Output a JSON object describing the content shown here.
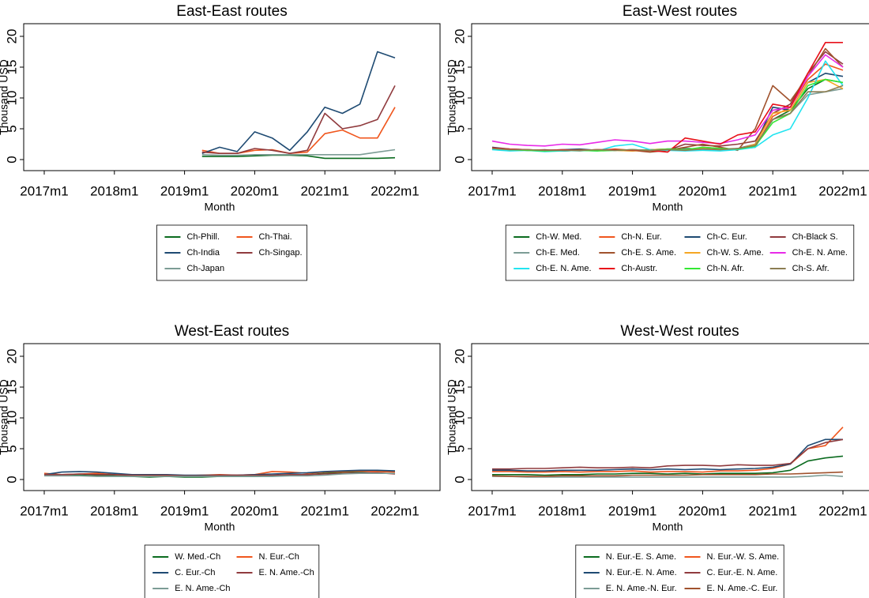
{
  "chart_data": [
    {
      "type": "line",
      "title": "East-East routes",
      "x_label": "Month",
      "y_label": "Thousand USD",
      "x": [
        2017,
        2017.25,
        2017.5,
        2017.75,
        2018,
        2018.25,
        2018.5,
        2018.75,
        2019,
        2019.25,
        2019.5,
        2019.75,
        2020,
        2020.25,
        2020.5,
        2020.75,
        2021,
        2021.25,
        2021.5,
        2021.75,
        2022
      ],
      "xlim": [
        2017,
        2022
      ],
      "xticks": [
        {
          "value": 2017,
          "label": "2017m1"
        },
        {
          "value": 2018,
          "label": "2018m1"
        },
        {
          "value": 2019,
          "label": "2019m1"
        },
        {
          "value": 2020,
          "label": "2020m1"
        },
        {
          "value": 2021,
          "label": "2021m1"
        },
        {
          "value": 2022,
          "label": "2022m1"
        }
      ],
      "ylim": [
        0,
        20
      ],
      "yticks": [
        0,
        5,
        10,
        15,
        20
      ],
      "series": [
        {
          "name": "Ch-Phill.",
          "color": "#0b6b1f",
          "values": [
            null,
            null,
            null,
            null,
            null,
            null,
            null,
            null,
            null,
            0.5,
            0.5,
            0.5,
            0.6,
            0.7,
            0.7,
            0.6,
            0.2,
            0.2,
            0.2,
            0.2,
            0.3
          ]
        },
        {
          "name": "Ch-Thai.",
          "color": "#f0561d",
          "values": [
            null,
            null,
            null,
            null,
            null,
            null,
            null,
            null,
            null,
            1.5,
            1.0,
            1.0,
            1.5,
            1.6,
            1.0,
            1.2,
            4.2,
            4.8,
            3.5,
            3.5,
            8.5
          ]
        },
        {
          "name": "Ch-India",
          "color": "#1e4a72",
          "values": [
            null,
            null,
            null,
            null,
            null,
            null,
            null,
            null,
            null,
            1.0,
            2.0,
            1.3,
            4.5,
            3.5,
            1.5,
            4.5,
            8.5,
            7.5,
            9.0,
            17.5,
            16.5
          ]
        },
        {
          "name": "Ch-Singap.",
          "color": "#903b3e",
          "values": [
            null,
            null,
            null,
            null,
            null,
            null,
            null,
            null,
            null,
            1.2,
            1.0,
            1.0,
            1.8,
            1.5,
            1.0,
            1.5,
            7.5,
            5.0,
            5.5,
            6.5,
            12.0
          ]
        },
        {
          "name": "Ch-Japan",
          "color": "#7c9c95",
          "values": [
            null,
            null,
            null,
            null,
            null,
            null,
            null,
            null,
            null,
            0.8,
            0.7,
            0.7,
            0.8,
            0.8,
            0.8,
            0.8,
            0.8,
            0.8,
            0.8,
            1.2,
            1.6
          ]
        }
      ]
    },
    {
      "type": "line",
      "title": "East-West routes",
      "x_label": "Month",
      "y_label": "Thousand USD",
      "x": [
        2017,
        2017.25,
        2017.5,
        2017.75,
        2018,
        2018.25,
        2018.5,
        2018.75,
        2019,
        2019.25,
        2019.5,
        2019.75,
        2020,
        2020.25,
        2020.5,
        2020.75,
        2021,
        2021.25,
        2021.5,
        2021.75,
        2022
      ],
      "xlim": [
        2017,
        2022
      ],
      "xticks": [
        {
          "value": 2017,
          "label": "2017m1"
        },
        {
          "value": 2018,
          "label": "2018m1"
        },
        {
          "value": 2019,
          "label": "2019m1"
        },
        {
          "value": 2020,
          "label": "2020m1"
        },
        {
          "value": 2021,
          "label": "2021m1"
        },
        {
          "value": 2022,
          "label": "2022m1"
        }
      ],
      "ylim": [
        0,
        20
      ],
      "yticks": [
        0,
        5,
        10,
        15,
        20
      ],
      "series": [
        {
          "name": "Ch-W. Med.",
          "color": "#0b6b1f",
          "values": [
            1.8,
            1.6,
            1.5,
            1.5,
            1.4,
            1.5,
            1.5,
            1.6,
            1.5,
            1.6,
            1.7,
            1.8,
            1.7,
            1.6,
            1.8,
            2.2,
            6.5,
            8.0,
            11.5,
            13.0,
            12.5
          ]
        },
        {
          "name": "Ch-N. Eur.",
          "color": "#f0561d",
          "values": [
            1.7,
            1.5,
            1.6,
            1.4,
            1.5,
            1.6,
            1.5,
            1.7,
            1.5,
            1.4,
            1.6,
            1.5,
            2.0,
            1.8,
            1.7,
            2.0,
            7.0,
            8.5,
            13.0,
            15.5,
            14.5
          ]
        },
        {
          "name": "Ch-C. Eur.",
          "color": "#1e4a72",
          "values": [
            2.0,
            1.7,
            1.6,
            1.5,
            1.6,
            1.7,
            1.5,
            1.5,
            1.6,
            1.5,
            1.6,
            1.6,
            1.8,
            1.7,
            1.8,
            2.5,
            8.5,
            8.0,
            12.5,
            14.0,
            13.5
          ]
        },
        {
          "name": "Ch-Black S.",
          "color": "#903b3e",
          "values": [
            1.8,
            1.6,
            1.5,
            1.6,
            1.4,
            1.5,
            1.6,
            1.5,
            1.6,
            1.5,
            1.5,
            2.5,
            2.3,
            2.2,
            2.5,
            3.0,
            7.5,
            9.0,
            14.0,
            17.5,
            15.5
          ]
        },
        {
          "name": "Ch-E. Med.",
          "color": "#7c9c95",
          "values": [
            1.7,
            1.5,
            1.5,
            1.4,
            1.5,
            1.4,
            1.6,
            1.5,
            1.4,
            1.5,
            1.6,
            1.7,
            1.6,
            1.5,
            1.7,
            2.2,
            6.5,
            7.5,
            10.5,
            11.0,
            11.5
          ]
        },
        {
          "name": "Ch-E. S. Ame.",
          "color": "#a0522d",
          "values": [
            1.8,
            1.6,
            1.5,
            1.5,
            1.4,
            1.6,
            1.5,
            1.6,
            1.5,
            1.2,
            1.5,
            2.0,
            2.5,
            2.0,
            1.5,
            5.0,
            12.0,
            9.5,
            13.5,
            18.0,
            15.0
          ]
        },
        {
          "name": "Ch-W. S. Ame.",
          "color": "#f5a623",
          "values": [
            1.7,
            1.5,
            1.6,
            1.5,
            1.5,
            1.5,
            1.6,
            1.5,
            1.4,
            1.6,
            1.7,
            1.5,
            1.8,
            1.6,
            1.7,
            2.5,
            7.5,
            8.0,
            12.5,
            13.0,
            11.5
          ]
        },
        {
          "name": "Ch-E. N. Ame.",
          "color": "#e82ae8",
          "values": [
            3.0,
            2.5,
            2.3,
            2.2,
            2.5,
            2.4,
            2.8,
            3.2,
            3.0,
            2.6,
            3.0,
            3.0,
            2.8,
            2.6,
            3.2,
            4.0,
            8.0,
            8.5,
            13.5,
            17.0,
            15.0
          ]
        },
        {
          "name": "Ch-E. N. Ame.",
          "color": "#22e4f0",
          "values": [
            1.6,
            1.4,
            1.5,
            1.3,
            1.4,
            1.5,
            1.4,
            2.2,
            2.5,
            1.6,
            1.5,
            1.4,
            1.5,
            1.4,
            1.6,
            2.0,
            4.0,
            5.0,
            10.0,
            16.0,
            12.0
          ]
        },
        {
          "name": "Ch-Austr.",
          "color": "#e8101a",
          "values": [
            1.9,
            1.7,
            1.6,
            1.5,
            1.6,
            1.5,
            1.6,
            1.6,
            1.5,
            1.5,
            1.2,
            3.5,
            3.0,
            2.5,
            4.0,
            4.5,
            9.0,
            8.5,
            14.0,
            19.0,
            19.0
          ]
        },
        {
          "name": "Ch-N. Afr.",
          "color": "#33e833",
          "values": [
            1.8,
            1.6,
            1.5,
            1.4,
            1.5,
            1.5,
            1.4,
            1.5,
            1.6,
            1.5,
            1.7,
            1.6,
            2.0,
            1.8,
            1.7,
            2.2,
            6.0,
            7.5,
            12.0,
            13.0,
            12.5
          ]
        },
        {
          "name": "Ch-S. Afr.",
          "color": "#8c7d52",
          "values": [
            1.8,
            1.6,
            1.6,
            1.5,
            1.5,
            1.5,
            1.6,
            1.5,
            1.6,
            1.5,
            1.6,
            1.5,
            1.7,
            1.6,
            1.8,
            2.3,
            6.5,
            7.5,
            11.0,
            11.0,
            12.0
          ]
        }
      ]
    },
    {
      "type": "line",
      "title": "West-East routes",
      "x_label": "Month",
      "y_label": "Thousand USD",
      "x": [
        2017,
        2017.25,
        2017.5,
        2017.75,
        2018,
        2018.25,
        2018.5,
        2018.75,
        2019,
        2019.25,
        2019.5,
        2019.75,
        2020,
        2020.25,
        2020.5,
        2020.75,
        2021,
        2021.25,
        2021.5,
        2021.75,
        2022
      ],
      "xlim": [
        2017,
        2022
      ],
      "xticks": [
        {
          "value": 2017,
          "label": "2017m1"
        },
        {
          "value": 2018,
          "label": "2018m1"
        },
        {
          "value": 2019,
          "label": "2019m1"
        },
        {
          "value": 2020,
          "label": "2020m1"
        },
        {
          "value": 2021,
          "label": "2021m1"
        },
        {
          "value": 2022,
          "label": "2022m1"
        }
      ],
      "ylim": [
        0,
        20
      ],
      "yticks": [
        0,
        5,
        10,
        15,
        20
      ],
      "series": [
        {
          "name": "W. Med.-Ch",
          "color": "#0b6b1f",
          "values": [
            0.8,
            0.7,
            0.7,
            0.6,
            0.6,
            0.5,
            0.4,
            0.5,
            0.4,
            0.4,
            0.5,
            0.5,
            0.5,
            0.6,
            0.7,
            0.8,
            1.0,
            1.2,
            1.3,
            1.4,
            1.3
          ]
        },
        {
          "name": "N. Eur.-Ch",
          "color": "#f0561d",
          "values": [
            1.0,
            0.8,
            0.9,
            1.0,
            0.8,
            0.7,
            0.7,
            0.6,
            0.6,
            0.7,
            0.8,
            0.7,
            0.8,
            1.3,
            1.2,
            1.0,
            1.2,
            1.3,
            1.4,
            1.3,
            1.2
          ]
        },
        {
          "name": "C. Eur.-Ch",
          "color": "#1e4a72",
          "values": [
            0.8,
            1.2,
            1.3,
            1.2,
            1.0,
            0.8,
            0.8,
            0.8,
            0.7,
            0.7,
            0.7,
            0.7,
            0.8,
            0.9,
            1.0,
            1.1,
            1.3,
            1.4,
            1.5,
            1.5,
            1.4
          ]
        },
        {
          "name": "E. N. Ame.-Ch",
          "color": "#903b3e",
          "values": [
            0.8,
            0.8,
            0.9,
            0.8,
            0.8,
            0.7,
            0.7,
            0.7,
            0.6,
            0.6,
            0.7,
            0.7,
            0.7,
            0.7,
            0.8,
            0.8,
            0.9,
            1.0,
            1.1,
            1.1,
            0.9
          ]
        },
        {
          "name": "E. N. Ame.-Ch",
          "color": "#7c9c95",
          "values": [
            0.6,
            0.6,
            0.6,
            0.5,
            0.5,
            0.5,
            0.5,
            0.5,
            0.5,
            0.5,
            0.5,
            0.5,
            0.5,
            0.5,
            0.6,
            0.6,
            0.7,
            0.9,
            1.0,
            1.0,
            1.0
          ]
        }
      ]
    },
    {
      "type": "line",
      "title": "West-West routes",
      "x_label": "Month",
      "y_label": "Thousand USD",
      "x": [
        2017,
        2017.25,
        2017.5,
        2017.75,
        2018,
        2018.25,
        2018.5,
        2018.75,
        2019,
        2019.25,
        2019.5,
        2019.75,
        2020,
        2020.25,
        2020.5,
        2020.75,
        2021,
        2021.25,
        2021.5,
        2021.75,
        2022
      ],
      "xlim": [
        2017,
        2022
      ],
      "xticks": [
        {
          "value": 2017,
          "label": "2017m1"
        },
        {
          "value": 2018,
          "label": "2018m1"
        },
        {
          "value": 2019,
          "label": "2019m1"
        },
        {
          "value": 2020,
          "label": "2020m1"
        },
        {
          "value": 2021,
          "label": "2021m1"
        },
        {
          "value": 2022,
          "label": "2022m1"
        }
      ],
      "ylim": [
        0,
        20
      ],
      "yticks": [
        0,
        5,
        10,
        15,
        20
      ],
      "series": [
        {
          "name": "N. Eur.-E. S. Ame.",
          "color": "#0b6b1f",
          "values": [
            0.8,
            0.8,
            0.8,
            0.7,
            0.8,
            0.8,
            0.9,
            0.9,
            1.0,
            1.0,
            0.9,
            1.0,
            0.9,
            1.0,
            1.0,
            1.0,
            1.1,
            1.5,
            3.0,
            3.5,
            3.8
          ]
        },
        {
          "name": "N. Eur.-W. S. Ame.",
          "color": "#f0561d",
          "values": [
            1.3,
            1.3,
            1.2,
            1.2,
            1.3,
            1.2,
            1.3,
            1.3,
            1.4,
            1.2,
            1.3,
            1.3,
            1.2,
            1.4,
            1.4,
            1.5,
            1.8,
            2.5,
            5.0,
            5.5,
            8.5
          ]
        },
        {
          "name": "N. Eur.-E. N. Ame.",
          "color": "#1e4a72",
          "values": [
            1.5,
            1.5,
            1.4,
            1.4,
            1.5,
            1.5,
            1.5,
            1.6,
            1.7,
            1.6,
            1.7,
            1.6,
            1.7,
            1.6,
            1.7,
            1.8,
            2.0,
            2.5,
            5.5,
            6.5,
            6.5
          ]
        },
        {
          "name": "C. Eur.-E. N. Ame.",
          "color": "#903b3e",
          "values": [
            1.7,
            1.7,
            1.8,
            1.8,
            1.9,
            2.0,
            1.9,
            1.9,
            2.0,
            1.9,
            2.2,
            2.3,
            2.3,
            2.2,
            2.4,
            2.3,
            2.3,
            2.6,
            5.0,
            6.0,
            6.5
          ]
        },
        {
          "name": "E. N. Ame.-N. Eur.",
          "color": "#7c9c95",
          "values": [
            0.5,
            0.5,
            0.4,
            0.4,
            0.4,
            0.4,
            0.4,
            0.4,
            0.4,
            0.4,
            0.4,
            0.4,
            0.4,
            0.4,
            0.4,
            0.4,
            0.4,
            0.4,
            0.5,
            0.7,
            0.5
          ]
        },
        {
          "name": "E. N. Ame.-C. Eur.",
          "color": "#a0522d",
          "values": [
            0.6,
            0.5,
            0.5,
            0.5,
            0.6,
            0.6,
            0.6,
            0.6,
            0.7,
            0.7,
            0.7,
            0.7,
            0.8,
            0.8,
            0.8,
            0.8,
            0.9,
            0.9,
            1.0,
            1.1,
            1.2
          ]
        }
      ]
    }
  ]
}
